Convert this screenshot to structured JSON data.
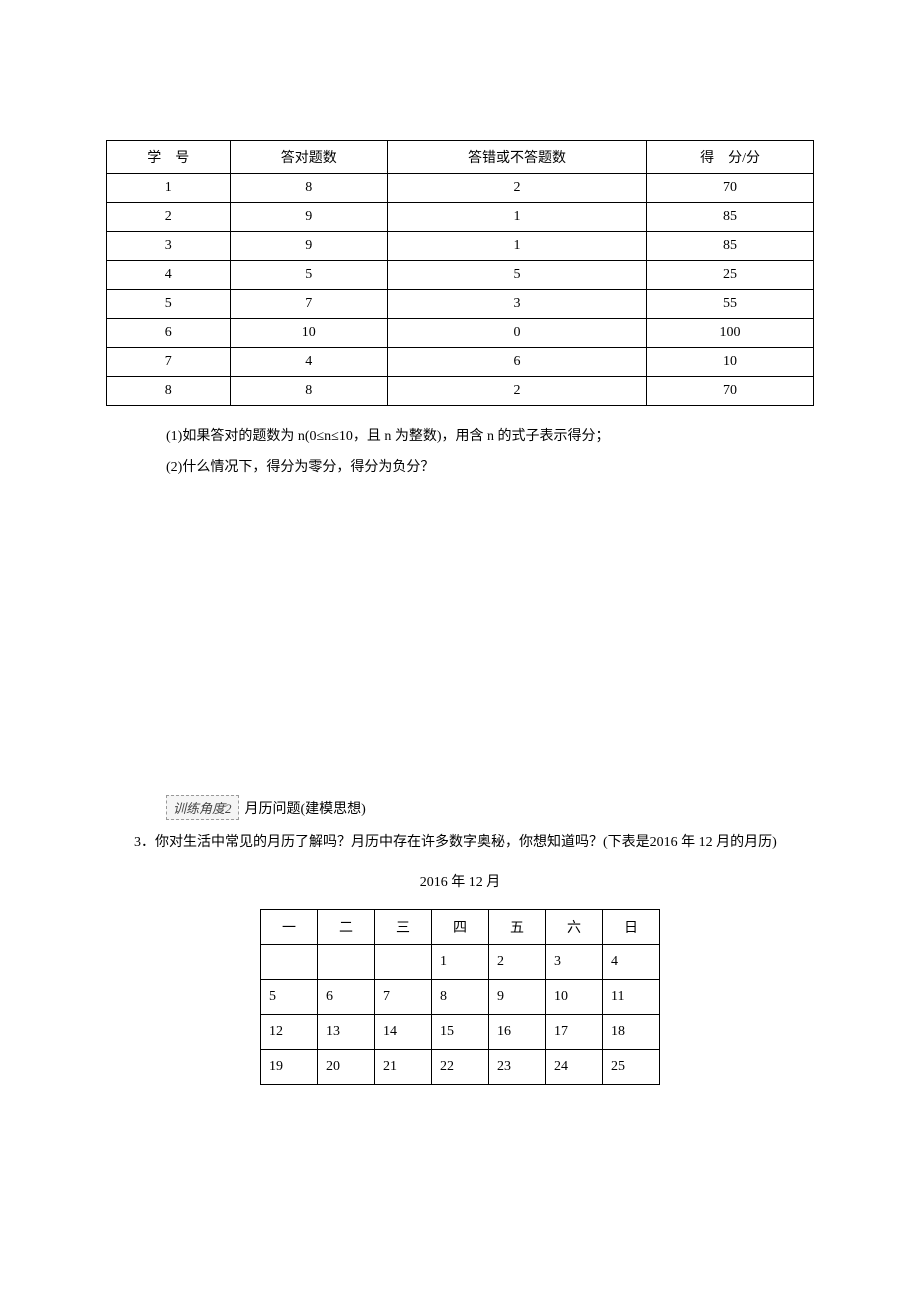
{
  "score_table": {
    "headers": [
      "学　号",
      "答对题数",
      "答错或不答题数",
      "得　分/分"
    ],
    "rows": [
      [
        "1",
        "8",
        "2",
        "70"
      ],
      [
        "2",
        "9",
        "1",
        "85"
      ],
      [
        "3",
        "9",
        "1",
        "85"
      ],
      [
        "4",
        "5",
        "5",
        "25"
      ],
      [
        "5",
        "7",
        "3",
        "55"
      ],
      [
        "6",
        "10",
        "0",
        "100"
      ],
      [
        "7",
        "4",
        "6",
        "10"
      ],
      [
        "8",
        "8",
        "2",
        "70"
      ]
    ]
  },
  "q1_line1": "(1)如果答对的题数为 n(0≤n≤10，且 n 为整数)，用含 n 的式子表示得分；",
  "q1_line2": "(2)什么情况下，得分为零分，得分为负分？",
  "section_badge": "训练角度2",
  "section_label": "月历问题(建模思想)",
  "q3_text": "3．你对生活中常见的月历了解吗？月历中存在许多数字奥秘，你想知道吗？(下表是2016 年 12 月的月历)",
  "calendar_title": "2016 年 12 月",
  "calendar": {
    "headers": [
      "一",
      "二",
      "三",
      "四",
      "五",
      "六",
      "日"
    ],
    "rows": [
      [
        "",
        "",
        "",
        "1",
        "2",
        "3",
        "4"
      ],
      [
        "5",
        "6",
        "7",
        "8",
        "9",
        "10",
        "11"
      ],
      [
        "12",
        "13",
        "14",
        "15",
        "16",
        "17",
        "18"
      ],
      [
        "19",
        "20",
        "21",
        "22",
        "23",
        "24",
        "25"
      ]
    ]
  }
}
